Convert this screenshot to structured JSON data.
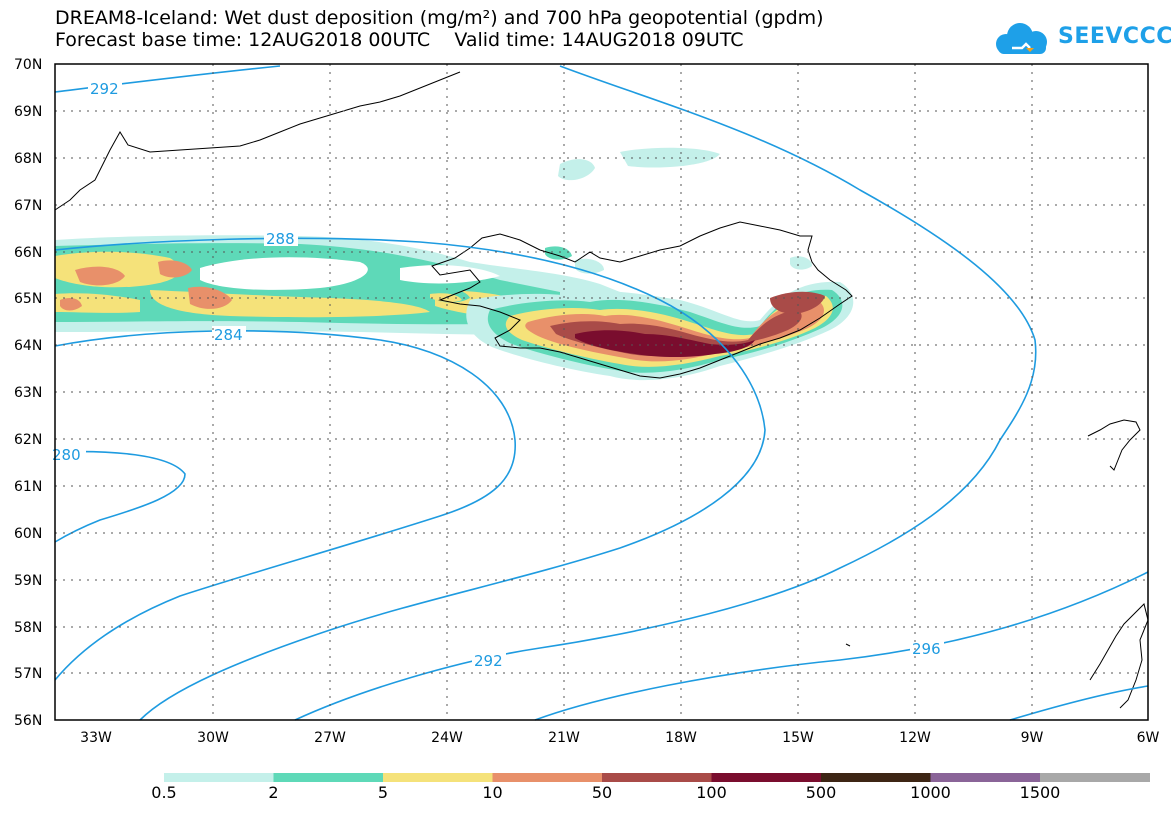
{
  "title_line1": "DREAM8-Iceland: Wet dust deposition (mg/m²) and 700 hPa geopotential (gpdm)",
  "title_line2": "Forecast base time: 12AUG2018 00UTC    Valid time: 14AUG2018 09UTC",
  "logo_text": "SEEVCCC",
  "logo_icon": "cloud-icon",
  "lat_labels": [
    "70N",
    "69N",
    "68N",
    "67N",
    "66N",
    "65N",
    "64N",
    "63N",
    "62N",
    "61N",
    "60N",
    "59N",
    "58N",
    "57N",
    "56N"
  ],
  "lon_labels": [
    "33W",
    "30W",
    "27W",
    "24W",
    "21W",
    "18W",
    "15W",
    "12W",
    "9W",
    "6W"
  ],
  "contour_labels": [
    "292",
    "288",
    "284",
    "280",
    "292",
    "296"
  ],
  "legend": {
    "labels": [
      "0.5",
      "2",
      "5",
      "10",
      "50",
      "100",
      "500",
      "1000",
      "1500"
    ],
    "colors": [
      "#c4f0ea",
      "#5ed9b8",
      "#f5e27a",
      "#e8906a",
      "#a94b48",
      "#7a0d2e",
      "#3d2514",
      "#8a6498",
      "#a8a8a8"
    ]
  },
  "colors": {
    "contour": "#1e9be0",
    "frame": "#000000",
    "grid": "#555555"
  }
}
